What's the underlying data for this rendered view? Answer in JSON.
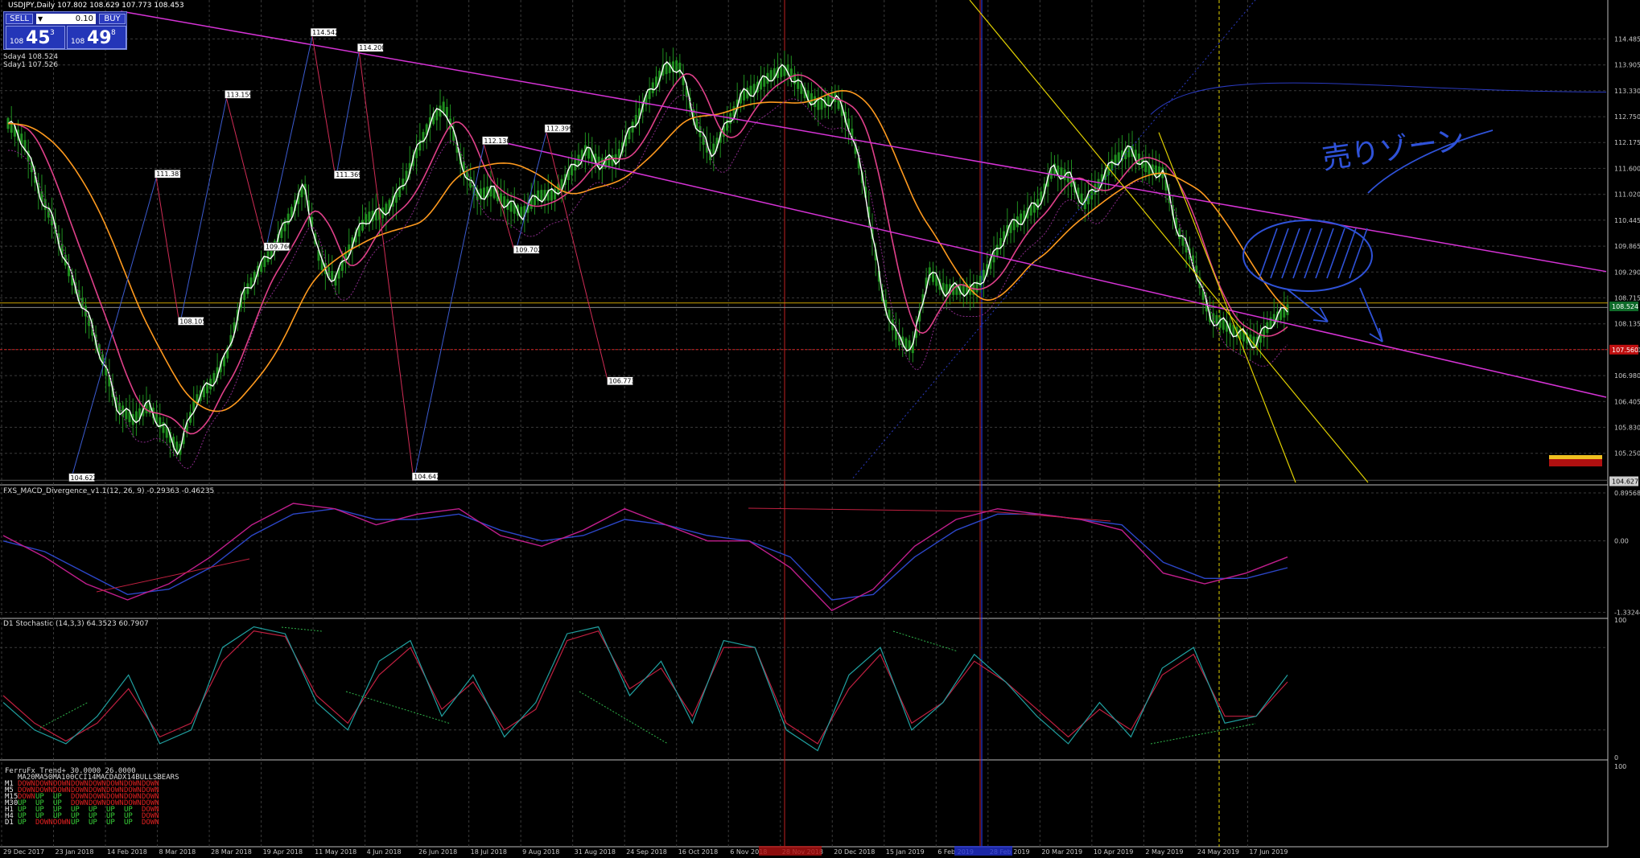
{
  "header": {
    "symbol": "USDJPY,Daily",
    "ohlc": "107.802 108.629 107.773 108.453",
    "sell_label": "SELL",
    "buy_label": "BUY",
    "lot_value": "0.10",
    "bid": {
      "small": "108",
      "big": "45",
      "sup": "3"
    },
    "ask": {
      "small": "108",
      "big": "49",
      "sup": "8"
    },
    "sma_lines": [
      "Sday4 108.524",
      "Sday1 107.526"
    ]
  },
  "colors": {
    "background": "#000000",
    "grid": "#3a3a3a",
    "candle": "#1f8f1f",
    "close_line": "#ffffff",
    "ma_pink": "#e0408a",
    "ma_orange": "#ff9a1e",
    "channel": "#d633d6",
    "yellow_line": "#e0d000",
    "zigzag_blue": "#3b5bd0",
    "zigzag_red": "#d02c55",
    "annotation": "#2f52d8",
    "macd_main": "#c01e8c",
    "macd_signal": "#2c46c8",
    "stoch_main": "#20a0a0",
    "stoch_signal": "#c02040"
  },
  "chart_data": [
    {
      "type": "candlestick",
      "title": "USDJPY,Daily",
      "y_range": [
        104.6,
        115.1
      ],
      "y_ticks": [
        "114.485",
        "113.905",
        "113.330",
        "112.750",
        "112.175",
        "111.600",
        "111.020",
        "110.445",
        "109.865",
        "109.290",
        "108.715",
        "108.135",
        "107.560",
        "106.980",
        "106.405",
        "105.830",
        "105.250"
      ],
      "current_price_label": "108.524",
      "red_level_label": "107.560",
      "bottom_label": "104.627",
      "x_labels": [
        "29 Dec 2017",
        "23 Jan 2018",
        "14 Feb 2018",
        "8 Mar 2018",
        "28 Mar 2018",
        "19 Apr 2018",
        "11 May 2018",
        "4 Jun 2018",
        "26 Jun 2018",
        "18 Jul 2018",
        "9 Aug 2018",
        "31 Aug 2018",
        "24 Sep 2018",
        "16 Oct 2018",
        "6 Nov 2018",
        "28 Nov 2018",
        "20 Dec 2018",
        "15 Jan 2019",
        "6 Feb 2019",
        "28 Feb 2019",
        "20 Mar 2019",
        "10 Apr 2019",
        "2 May 2019",
        "24 May 2019",
        "17 Jun 2019"
      ],
      "price_path": [
        [
          0,
          112.6
        ],
        [
          1,
          112.2
        ],
        [
          2,
          111.1
        ],
        [
          3,
          110.3
        ],
        [
          4,
          109.2
        ],
        [
          5,
          108.4
        ],
        [
          6,
          107.4
        ],
        [
          7,
          106.3
        ],
        [
          8,
          106.0
        ],
        [
          9,
          106.3
        ],
        [
          10,
          105.8
        ],
        [
          11,
          105.3
        ],
        [
          12,
          106.4
        ],
        [
          13,
          106.8
        ],
        [
          14,
          107.4
        ],
        [
          15,
          108.7
        ],
        [
          16,
          109.3
        ],
        [
          17,
          109.8
        ],
        [
          18,
          110.5
        ],
        [
          19,
          111.2
        ],
        [
          20,
          109.5
        ],
        [
          21,
          109.1
        ],
        [
          22,
          109.9
        ],
        [
          23,
          110.5
        ],
        [
          24,
          110.6
        ],
        [
          25,
          111.0
        ],
        [
          26,
          111.8
        ],
        [
          27,
          112.6
        ],
        [
          28,
          113.0
        ],
        [
          29,
          111.8
        ],
        [
          30,
          111.0
        ],
        [
          31,
          111.1
        ],
        [
          32,
          110.8
        ],
        [
          33,
          110.6
        ],
        [
          34,
          111.0
        ],
        [
          35,
          111.0
        ],
        [
          36,
          111.5
        ],
        [
          37,
          112.0
        ],
        [
          38,
          111.7
        ],
        [
          39,
          111.8
        ],
        [
          40,
          112.5
        ],
        [
          41,
          113.2
        ],
        [
          42,
          113.8
        ],
        [
          43,
          113.9
        ],
        [
          44,
          112.7
        ],
        [
          45,
          111.9
        ],
        [
          46,
          112.5
        ],
        [
          47,
          113.2
        ],
        [
          48,
          113.4
        ],
        [
          49,
          113.7
        ],
        [
          50,
          113.8
        ],
        [
          51,
          113.3
        ],
        [
          52,
          113.0
        ],
        [
          53,
          113.2
        ],
        [
          54,
          112.5
        ],
        [
          55,
          111.0
        ],
        [
          56,
          108.8
        ],
        [
          57,
          107.8
        ],
        [
          58,
          107.6
        ],
        [
          59,
          109.3
        ],
        [
          60,
          108.9
        ],
        [
          61,
          108.9
        ],
        [
          62,
          108.9
        ],
        [
          63,
          109.5
        ],
        [
          64,
          110.2
        ],
        [
          65,
          110.5
        ],
        [
          66,
          110.8
        ],
        [
          67,
          111.6
        ],
        [
          68,
          111.4
        ],
        [
          69,
          110.8
        ],
        [
          70,
          111.3
        ],
        [
          71,
          111.8
        ],
        [
          72,
          112.0
        ],
        [
          73,
          111.6
        ],
        [
          74,
          111.5
        ],
        [
          75,
          110.2
        ],
        [
          76,
          109.5
        ],
        [
          77,
          108.3
        ],
        [
          78,
          108.1
        ],
        [
          79,
          107.9
        ],
        [
          80,
          107.7
        ],
        [
          81,
          108.2
        ],
        [
          82,
          108.45
        ]
      ],
      "swing_labels": [
        {
          "x": 4,
          "y": 104.622,
          "label": "104.622"
        },
        {
          "x": 9.5,
          "y": 111.387,
          "label": "111.387"
        },
        {
          "x": 11,
          "y": 108.105,
          "label": "108.105"
        },
        {
          "x": 14,
          "y": 113.159,
          "label": "113.159"
        },
        {
          "x": 16.5,
          "y": 109.766,
          "label": "109.766"
        },
        {
          "x": 19.5,
          "y": 114.542,
          "label": "114.542"
        },
        {
          "x": 21,
          "y": 111.369,
          "label": "111.369"
        },
        {
          "x": 22.5,
          "y": 114.2,
          "label": "114.200"
        },
        {
          "x": 26,
          "y": 104.642,
          "label": "104.642"
        },
        {
          "x": 30.5,
          "y": 112.13,
          "label": "112.130"
        },
        {
          "x": 32.5,
          "y": 109.702,
          "label": "109.702"
        },
        {
          "x": 34.5,
          "y": 112.399,
          "label": "112.399"
        },
        {
          "x": 38.5,
          "y": 106.773,
          "label": "106.773"
        }
      ],
      "annotation_text": "売りゾーン"
    },
    {
      "type": "line",
      "title": "FXS_MACD_Divergence_v1.1(12, 26, 9) -0.29363 -0.46235",
      "y_ticks": [
        "0.89568",
        "0.00",
        "-1.33244"
      ],
      "y_range": [
        -1.4,
        1.0
      ],
      "series": [
        {
          "name": "main",
          "values": [
            0.1,
            -0.3,
            -0.8,
            -1.1,
            -0.8,
            -0.3,
            0.3,
            0.7,
            0.6,
            0.3,
            0.5,
            0.6,
            0.1,
            -0.1,
            0.2,
            0.6,
            0.3,
            0.0,
            0.0,
            -0.5,
            -1.3,
            -0.9,
            -0.1,
            0.4,
            0.6,
            0.5,
            0.4,
            0.2,
            -0.6,
            -0.8,
            -0.6,
            -0.3
          ]
        },
        {
          "name": "signal",
          "values": [
            0.0,
            -0.2,
            -0.6,
            -1.0,
            -0.9,
            -0.5,
            0.1,
            0.5,
            0.6,
            0.4,
            0.4,
            0.5,
            0.2,
            0.0,
            0.1,
            0.4,
            0.3,
            0.1,
            0.0,
            -0.3,
            -1.1,
            -1.0,
            -0.3,
            0.2,
            0.5,
            0.5,
            0.4,
            0.3,
            -0.4,
            -0.7,
            -0.7,
            -0.5
          ]
        }
      ]
    },
    {
      "type": "line",
      "title": "D1 Stochastic (14,3,3) 64.3523 60.7907",
      "y_ticks": [
        "100",
        "0"
      ],
      "y_range": [
        0,
        100
      ],
      "series": [
        {
          "name": "main",
          "values": [
            40,
            20,
            10,
            30,
            60,
            10,
            20,
            80,
            95,
            90,
            40,
            20,
            70,
            85,
            30,
            60,
            15,
            40,
            90,
            95,
            45,
            70,
            25,
            85,
            80,
            20,
            5,
            60,
            80,
            20,
            40,
            75,
            55,
            30,
            10,
            40,
            15,
            65,
            80,
            25,
            30,
            60
          ]
        },
        {
          "name": "signal",
          "values": [
            45,
            25,
            12,
            25,
            50,
            15,
            25,
            70,
            92,
            88,
            45,
            25,
            60,
            80,
            35,
            55,
            20,
            35,
            85,
            92,
            50,
            65,
            30,
            80,
            80,
            25,
            10,
            50,
            75,
            25,
            40,
            70,
            55,
            35,
            15,
            35,
            20,
            60,
            75,
            30,
            30,
            55
          ]
        }
      ]
    }
  ],
  "ferru": {
    "title": "FerruFx_Trend+ 30.0000 26.0000",
    "headers": [
      "MA20",
      "MA50",
      "MA100",
      "CCI14",
      "MACD",
      "ADX14",
      "BULLS",
      "BEARS"
    ],
    "header_line": "MA20MA50MA100CCI14MACDADX14BULLSBEARS",
    "rows": [
      {
        "tf": "M1",
        "values": [
          "DOWN",
          "DOWN",
          "DOWN",
          "DOWN",
          "DOWN",
          "DOWN",
          "DOWN",
          "DOWN"
        ]
      },
      {
        "tf": "M5",
        "values": [
          "DOWN",
          "DOWN",
          "DOWN",
          "DOWN",
          "DOWN",
          "DOWN",
          "DOWN",
          "DOWN"
        ]
      },
      {
        "tf": "M15",
        "values": [
          "DOWN",
          "UP",
          "UP",
          "DOWN",
          "DOWN",
          "DOWN",
          "DOWN",
          "DOWN"
        ]
      },
      {
        "tf": "M30",
        "values": [
          "UP",
          "UP",
          "UP",
          "DOWN",
          "DOWN",
          "DOWN",
          "DOWN",
          "DOWN"
        ]
      },
      {
        "tf": "H1",
        "values": [
          "UP",
          "UP",
          "UP",
          "UP",
          "UP",
          "UP",
          "UP",
          "DOWN"
        ]
      },
      {
        "tf": "H4",
        "values": [
          "UP",
          "UP",
          "UP",
          "UP",
          "UP",
          "UP",
          "UP",
          "DOWN"
        ]
      },
      {
        "tf": "D1",
        "values": [
          "UP",
          "DOWN",
          "DOWN",
          "UP",
          "UP",
          "UP",
          "UP",
          "DOWN"
        ]
      }
    ]
  }
}
